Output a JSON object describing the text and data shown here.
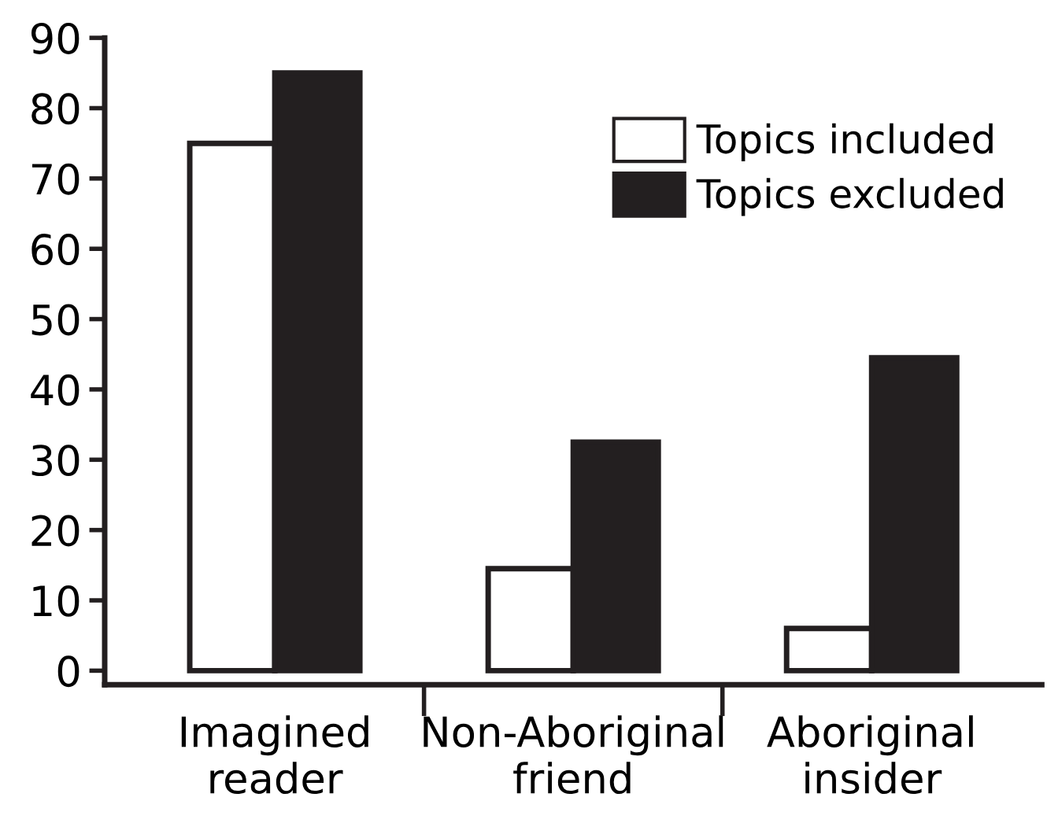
{
  "chart_data": {
    "type": "bar",
    "categories": [
      "Imagined\nreader",
      "Non-Aboriginal\nfriend",
      "Aboriginal\ninsider"
    ],
    "series": [
      {
        "name": "Topics included",
        "color": "#ffffff",
        "values": [
          75,
          14.5,
          6
        ]
      },
      {
        "name": "Topics excluded",
        "color": "#231f20",
        "values": [
          85,
          32.5,
          44.5
        ]
      }
    ],
    "ylim": [
      -2,
      90
    ],
    "yticks": [
      0,
      10,
      20,
      30,
      40,
      50,
      60,
      70,
      80,
      90
    ],
    "grid": false,
    "legend": "top right"
  }
}
